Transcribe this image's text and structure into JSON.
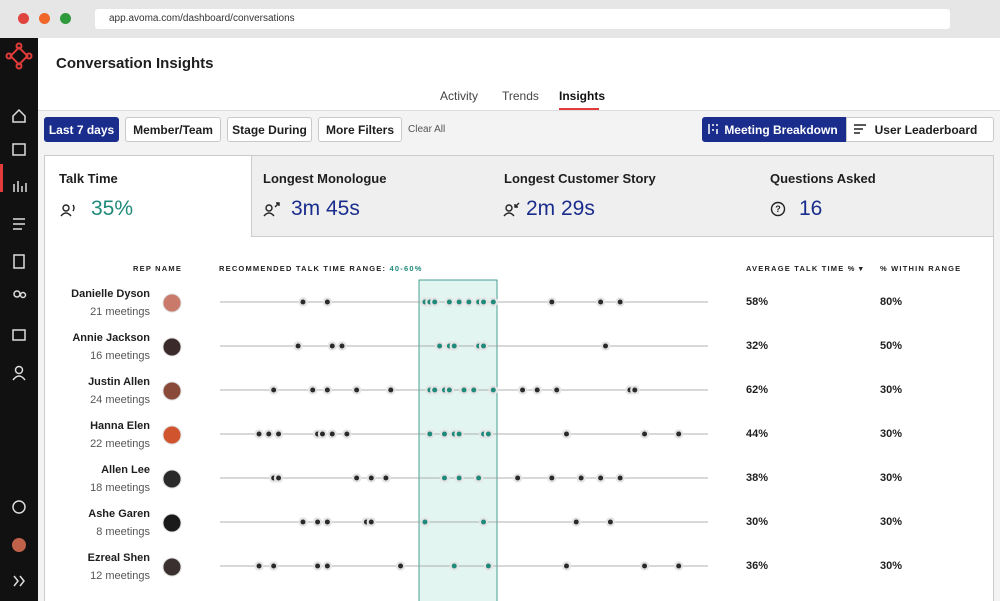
{
  "browser": {
    "url": "app.avoma.com/dashboard/conversations"
  },
  "header": {
    "title": "Conversation Insights"
  },
  "tabs": [
    "Activity",
    "Trends",
    "Insights"
  ],
  "filters": {
    "buttons": [
      "Last 7 days",
      "Member/Team",
      "Stage During",
      "More Filters"
    ],
    "clear": "Clear All",
    "views": [
      "Meeting Breakdown",
      "User Leaderboard"
    ]
  },
  "metrics": [
    {
      "label": "Talk Time",
      "value": "35%"
    },
    {
      "label": "Longest Monologue",
      "value": "3m 45s"
    },
    {
      "label": "Longest Customer Story",
      "value": "2m 29s"
    },
    {
      "label": "Questions Asked",
      "value": "16"
    }
  ],
  "table": {
    "columns": {
      "rep": "REP NAME",
      "range_label": "RECOMMENDED TALK TIME RANGE:",
      "range": "40-60%",
      "avg": "AVERAGE TALK TIME %",
      "within": "% WITHIN RANGE"
    },
    "rows": [
      {
        "name": "Danielle Dyson",
        "meetings": "21 meetings",
        "avg": "58%",
        "within": "80%",
        "talk_times": [
          17,
          22,
          42,
          43,
          44,
          47,
          49,
          51,
          53,
          54,
          56,
          68,
          78,
          82
        ]
      },
      {
        "name": "Annie Jackson",
        "meetings": "16 meetings",
        "avg": "32%",
        "within": "50%",
        "talk_times": [
          16,
          23,
          25,
          45,
          47,
          48,
          53,
          54,
          79
        ]
      },
      {
        "name": "Justin Allen",
        "meetings": "24 meetings",
        "avg": "62%",
        "within": "30%",
        "talk_times": [
          11,
          19,
          22,
          28,
          35,
          43,
          44,
          46,
          47,
          50,
          52,
          56,
          62,
          65,
          69,
          84,
          85
        ]
      },
      {
        "name": "Hanna Elen",
        "meetings": "22 meetings",
        "avg": "44%",
        "within": "30%",
        "talk_times": [
          8,
          10,
          12,
          20,
          21,
          23,
          26,
          43,
          46,
          48,
          49,
          54,
          55,
          71,
          87,
          94
        ]
      },
      {
        "name": "Allen Lee",
        "meetings": "18 meetings",
        "avg": "38%",
        "within": "30%",
        "talk_times": [
          11,
          12,
          28,
          31,
          34,
          46,
          49,
          53,
          61,
          68,
          74,
          78,
          82
        ]
      },
      {
        "name": "Ashe Garen",
        "meetings": "8 meetings",
        "avg": "30%",
        "within": "30%",
        "talk_times": [
          17,
          20,
          22,
          30,
          31,
          42,
          54,
          73,
          80
        ]
      },
      {
        "name": "Ezreal Shen",
        "meetings": "12 meetings",
        "avg": "36%",
        "within": "30%",
        "talk_times": [
          8,
          11,
          20,
          22,
          37,
          48,
          55,
          71,
          87,
          94
        ]
      }
    ]
  }
}
